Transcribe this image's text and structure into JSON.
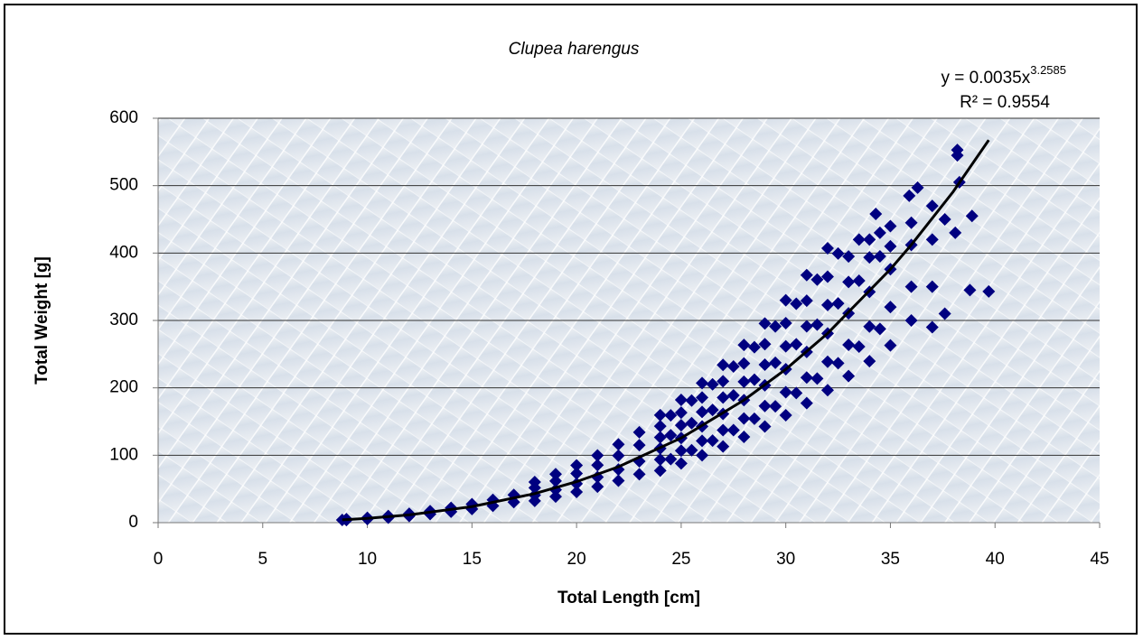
{
  "chart_data": {
    "type": "scatter",
    "title": "Clupea harengus",
    "xlabel": "Total Length [cm]",
    "ylabel": "Total Weight [g]",
    "equation": "y = 0.0035x",
    "equation_exponent": "3.2585",
    "r_squared": "R² = 0.9554",
    "xlim": [
      0,
      45
    ],
    "xticks": [
      0,
      5,
      10,
      15,
      20,
      25,
      30,
      35,
      40,
      45
    ],
    "ylim": [
      0,
      600
    ],
    "yticks": [
      0,
      100,
      200,
      300,
      400,
      500,
      600
    ],
    "grid": true,
    "series": [
      {
        "color": "#000080",
        "x": [
          8.8,
          9,
          9,
          10,
          10,
          11,
          11,
          12,
          12,
          13,
          13,
          14,
          14,
          15,
          15,
          16,
          16,
          17,
          17,
          18,
          18,
          18,
          18,
          19,
          19,
          19,
          19,
          20,
          20,
          20,
          20,
          21,
          21,
          21,
          21,
          22,
          22,
          22,
          22,
          23,
          23,
          23,
          23,
          24,
          24,
          24,
          24,
          24,
          24,
          25,
          25,
          25,
          25,
          25,
          25,
          26,
          26,
          26,
          26,
          26,
          26,
          27,
          27,
          27,
          27,
          27,
          27,
          28,
          28,
          28,
          28,
          28,
          28,
          29,
          29,
          29,
          29,
          29,
          29,
          30,
          30,
          30,
          30,
          30,
          30,
          31,
          31,
          31,
          31,
          31,
          31,
          32,
          32,
          32,
          32,
          32,
          32,
          33,
          33,
          33,
          33,
          33,
          34,
          34,
          34,
          34,
          34,
          35,
          35,
          35,
          35,
          35,
          36,
          36,
          36,
          36,
          37,
          37,
          37,
          37,
          24.5,
          24.5,
          24.5,
          25.5,
          25.5,
          25.5,
          26.5,
          26.5,
          26.5,
          27.5,
          27.5,
          27.5,
          28.5,
          28.5,
          28.5,
          29.5,
          29.5,
          29.5,
          30.5,
          30.5,
          30.5,
          31.5,
          31.5,
          31.5,
          32.5,
          32.5,
          32.5,
          33.5,
          33.5,
          33.5,
          34.5,
          34.5,
          34.5,
          38.2,
          38.2,
          38.3,
          39.7,
          38.8,
          38.9,
          36.3,
          35.9,
          34.3,
          37.6,
          38.1,
          37.6
        ],
        "values": [
          4,
          3.8,
          5.2,
          5.4,
          7.2,
          7.3,
          9.9,
          9.8,
          13.2,
          12.7,
          17.1,
          16.2,
          21.9,
          20.2,
          27.4,
          25,
          33.8,
          30.4,
          41.2,
          32.3,
          40.9,
          51.7,
          60.3,
          38.6,
          48.8,
          61.7,
          72,
          45.6,
          57.8,
          73,
          85.1,
          53.4,
          67.6,
          85.4,
          99.7,
          62.2,
          78.8,
          99.5,
          116.1,
          71.9,
          91,
          115,
          134.1,
          77.1,
          93.6,
          110.1,
          126.6,
          143.1,
          159.6,
          87.9,
          106.8,
          125.6,
          144.4,
          163.3,
          182.1,
          100,
          121.4,
          142.8,
          164.2,
          185.6,
          207.1,
          113,
          137.2,
          161.4,
          185.6,
          209.8,
          234,
          127.3,
          154.5,
          181.8,
          209.1,
          236.3,
          263.6,
          142.6,
          173.1,
          203.7,
          234.3,
          264.8,
          295.4,
          159.3,
          193.5,
          227.6,
          261.7,
          295.9,
          330,
          177.3,
          215.3,
          253.3,
          291.3,
          329.3,
          367.3,
          196.6,
          238.7,
          280.8,
          322.9,
          365,
          407.2,
          217.4,
          263.9,
          310.5,
          357.1,
          395,
          239.6,
          291,
          342.3,
          393.6,
          420,
          263,
          320,
          376,
          410,
          440,
          300,
          350,
          412,
          445,
          290,
          350,
          420,
          470,
          94.3,
          129.7,
          159.2,
          107.4,
          147.6,
          181.2,
          121.7,
          167.3,
          205.3,
          137.3,
          188.8,
          231.7,
          154.2,
          212.1,
          260.3,
          172.6,
          237.3,
          291.2,
          192.4,
          264.6,
          324.7,
          213.7,
          293.8,
          360.6,
          236.6,
          325.3,
          399.2,
          261.1,
          359,
          420,
          287.4,
          395.1,
          430,
          553,
          545,
          505,
          343,
          345,
          455,
          497,
          485,
          458,
          310,
          430,
          450
        ]
      }
    ],
    "trendline": {
      "color": "#000000",
      "x": [
        8.8,
        10,
        12,
        15,
        18,
        20,
        22,
        25,
        28,
        30,
        32,
        35,
        36,
        38,
        39.7
      ],
      "values": [
        4.2,
        6.3,
        11.5,
        23.8,
        43.1,
        60.8,
        82.9,
        125.6,
        181.8,
        227.6,
        280.8,
        376,
        412.2,
        491,
        567.6
      ]
    }
  }
}
